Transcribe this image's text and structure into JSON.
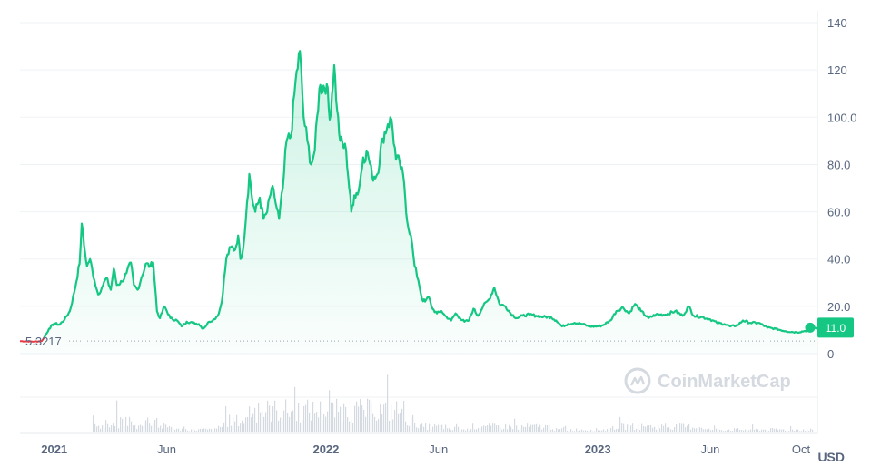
{
  "chart_data": {
    "type": "area",
    "x_range": [
      "2020-11-16",
      "2023-10-23"
    ],
    "ylim": [
      0,
      145
    ],
    "y_ticks": [
      0,
      20,
      40,
      60,
      80,
      100,
      120,
      140
    ],
    "y_tick_labels": [
      "0",
      "20.0",
      "40.0",
      "60.0",
      "80.0",
      "100.0",
      "120",
      "140"
    ],
    "x_ticks": [
      {
        "date": "2021-01-01",
        "label": "2021",
        "major": true
      },
      {
        "date": "2021-06-01",
        "label": "Jun",
        "major": false
      },
      {
        "date": "2022-01-01",
        "label": "2022",
        "major": true
      },
      {
        "date": "2022-06-01",
        "label": "Jun",
        "major": false
      },
      {
        "date": "2023-01-01",
        "label": "2023",
        "major": true
      },
      {
        "date": "2023-06-01",
        "label": "Jun",
        "major": false
      },
      {
        "date": "2023-10-01",
        "label": "Oct",
        "major": false
      }
    ],
    "start_price": 5.3217,
    "start_price_label": "5.3217",
    "current_price": 11.0,
    "current_price_label": "11.0",
    "currency": "USD",
    "watermark": "CoinMarketCap",
    "colors": {
      "up": "#16c784",
      "down": "#ea3943",
      "grid": "#eff2f5",
      "text": "#58667e",
      "volume": "#d5d9e0"
    },
    "series": [
      {
        "values": [
          [
            "2020-11-16",
            5.3
          ],
          [
            "2020-11-25",
            5.2
          ],
          [
            "2020-12-05",
            5.1
          ],
          [
            "2020-12-15",
            5.3
          ],
          [
            "2020-12-20",
            7.5
          ],
          [
            "2020-12-25",
            10.5
          ],
          [
            "2021-01-01",
            12.8
          ],
          [
            "2021-01-08",
            12.2
          ],
          [
            "2021-01-15",
            14.5
          ],
          [
            "2021-01-22",
            18.0
          ],
          [
            "2021-01-28",
            26.0
          ],
          [
            "2021-02-04",
            38.0
          ],
          [
            "2021-02-07",
            55.0
          ],
          [
            "2021-02-10",
            46.0
          ],
          [
            "2021-02-14",
            37.0
          ],
          [
            "2021-02-18",
            40.0
          ],
          [
            "2021-02-24",
            31.0
          ],
          [
            "2021-03-01",
            25.0
          ],
          [
            "2021-03-06",
            28.0
          ],
          [
            "2021-03-12",
            32.0
          ],
          [
            "2021-03-18",
            27.0
          ],
          [
            "2021-03-22",
            36.0
          ],
          [
            "2021-03-26",
            29.0
          ],
          [
            "2021-04-02",
            30.5
          ],
          [
            "2021-04-08",
            34.0
          ],
          [
            "2021-04-14",
            38.5
          ],
          [
            "2021-04-18",
            29.0
          ],
          [
            "2021-04-23",
            27.0
          ],
          [
            "2021-04-28",
            32.0
          ],
          [
            "2021-05-04",
            38.0
          ],
          [
            "2021-05-10",
            37.0
          ],
          [
            "2021-05-14",
            38.5
          ],
          [
            "2021-05-19",
            18.0
          ],
          [
            "2021-05-23",
            15.0
          ],
          [
            "2021-05-29",
            20.0
          ],
          [
            "2021-06-06",
            15.0
          ],
          [
            "2021-06-15",
            14.0
          ],
          [
            "2021-06-21",
            11.5
          ],
          [
            "2021-06-28",
            13.5
          ],
          [
            "2021-07-06",
            13.0
          ],
          [
            "2021-07-14",
            12.5
          ],
          [
            "2021-07-20",
            10.5
          ],
          [
            "2021-07-28",
            13.5
          ],
          [
            "2021-08-04",
            14.5
          ],
          [
            "2021-08-10",
            17.0
          ],
          [
            "2021-08-14",
            22.0
          ],
          [
            "2021-08-20",
            40.0
          ],
          [
            "2021-08-26",
            45.0
          ],
          [
            "2021-09-01",
            44.0
          ],
          [
            "2021-09-05",
            50.0
          ],
          [
            "2021-09-08",
            40.0
          ],
          [
            "2021-09-12",
            45.0
          ],
          [
            "2021-09-17",
            64.0
          ],
          [
            "2021-09-20",
            76.0
          ],
          [
            "2021-09-24",
            65.0
          ],
          [
            "2021-09-28",
            60.0
          ],
          [
            "2021-10-04",
            66.0
          ],
          [
            "2021-10-09",
            57.0
          ],
          [
            "2021-10-14",
            60.0
          ],
          [
            "2021-10-20",
            70.0
          ],
          [
            "2021-10-24",
            66.0
          ],
          [
            "2021-10-30",
            57.0
          ],
          [
            "2021-11-04",
            70.0
          ],
          [
            "2021-11-09",
            90.0
          ],
          [
            "2021-11-15",
            92.0
          ],
          [
            "2021-11-21",
            115.0
          ],
          [
            "2021-11-27",
            128.0
          ],
          [
            "2021-12-02",
            100.0
          ],
          [
            "2021-12-07",
            90.0
          ],
          [
            "2021-12-12",
            80.0
          ],
          [
            "2021-12-17",
            86.0
          ],
          [
            "2021-12-23",
            112.0
          ],
          [
            "2022-01-02",
            114.0
          ],
          [
            "2022-01-06",
            99.0
          ],
          [
            "2022-01-12",
            122.0
          ],
          [
            "2022-01-16",
            103.0
          ],
          [
            "2022-01-20",
            90.0
          ],
          [
            "2022-01-28",
            86.0
          ],
          [
            "2022-02-04",
            60.0
          ],
          [
            "2022-02-08",
            67.0
          ],
          [
            "2022-02-14",
            69.0
          ],
          [
            "2022-02-20",
            83.0
          ],
          [
            "2022-02-26",
            85.0
          ],
          [
            "2022-03-04",
            75.0
          ],
          [
            "2022-03-11",
            76.0
          ],
          [
            "2022-03-18",
            91.0
          ],
          [
            "2022-03-25",
            97.0
          ],
          [
            "2022-03-30",
            99.0
          ],
          [
            "2022-04-05",
            82.0
          ],
          [
            "2022-04-10",
            81.0
          ],
          [
            "2022-04-16",
            72.0
          ],
          [
            "2022-04-20",
            56.0
          ],
          [
            "2022-04-25",
            50.0
          ],
          [
            "2022-04-30",
            37.0
          ],
          [
            "2022-05-05",
            31.0
          ],
          [
            "2022-05-10",
            23.0
          ],
          [
            "2022-05-14",
            22.0
          ],
          [
            "2022-05-19",
            24.0
          ],
          [
            "2022-05-24",
            19.0
          ],
          [
            "2022-05-30",
            17.0
          ],
          [
            "2022-06-05",
            18.0
          ],
          [
            "2022-06-10",
            16.0
          ],
          [
            "2022-06-18",
            14.0
          ],
          [
            "2022-06-24",
            17.0
          ],
          [
            "2022-06-30",
            15.0
          ],
          [
            "2022-07-06",
            13.5
          ],
          [
            "2022-07-12",
            14.0
          ],
          [
            "2022-07-18",
            19.0
          ],
          [
            "2022-07-24",
            16.0
          ],
          [
            "2022-07-31",
            20.0
          ],
          [
            "2022-08-08",
            23.0
          ],
          [
            "2022-08-15",
            28.0
          ],
          [
            "2022-08-22",
            21.0
          ],
          [
            "2022-08-30",
            20.0
          ],
          [
            "2022-09-06",
            17.0
          ],
          [
            "2022-09-14",
            15.0
          ],
          [
            "2022-09-22",
            16.0
          ],
          [
            "2022-10-01",
            16.5
          ],
          [
            "2022-10-10",
            16.0
          ],
          [
            "2022-10-20",
            15.5
          ],
          [
            "2022-10-30",
            15.5
          ],
          [
            "2022-11-06",
            14.0
          ],
          [
            "2022-11-14",
            11.5
          ],
          [
            "2022-11-22",
            12.5
          ],
          [
            "2022-12-01",
            13.0
          ],
          [
            "2022-12-12",
            12.5
          ],
          [
            "2022-12-20",
            11.5
          ],
          [
            "2022-12-31",
            11.5
          ],
          [
            "2023-01-08",
            12.0
          ],
          [
            "2023-01-18",
            14.0
          ],
          [
            "2023-01-26",
            18.0
          ],
          [
            "2023-02-04",
            19.5
          ],
          [
            "2023-02-12",
            17.0
          ],
          [
            "2023-02-20",
            21.0
          ],
          [
            "2023-02-28",
            18.0
          ],
          [
            "2023-03-10",
            15.0
          ],
          [
            "2023-03-20",
            16.5
          ],
          [
            "2023-04-02",
            16.5
          ],
          [
            "2023-04-15",
            18.0
          ],
          [
            "2023-04-25",
            16.0
          ],
          [
            "2023-05-03",
            20.0
          ],
          [
            "2023-05-10",
            16.0
          ],
          [
            "2023-05-20",
            15.5
          ],
          [
            "2023-06-01",
            14.5
          ],
          [
            "2023-06-10",
            13.0
          ],
          [
            "2023-06-20",
            12.5
          ],
          [
            "2023-06-28",
            11.5
          ],
          [
            "2023-07-08",
            12.0
          ],
          [
            "2023-07-15",
            14.0
          ],
          [
            "2023-07-25",
            13.0
          ],
          [
            "2023-08-05",
            13.0
          ],
          [
            "2023-08-17",
            11.0
          ],
          [
            "2023-08-28",
            10.5
          ],
          [
            "2023-09-10",
            9.5
          ],
          [
            "2023-09-25",
            9.0
          ],
          [
            "2023-10-05",
            9.5
          ],
          [
            "2023-10-12",
            10.0
          ],
          [
            "2023-10-18",
            10.8
          ],
          [
            "2023-10-23",
            11.0
          ]
        ]
      }
    ]
  }
}
